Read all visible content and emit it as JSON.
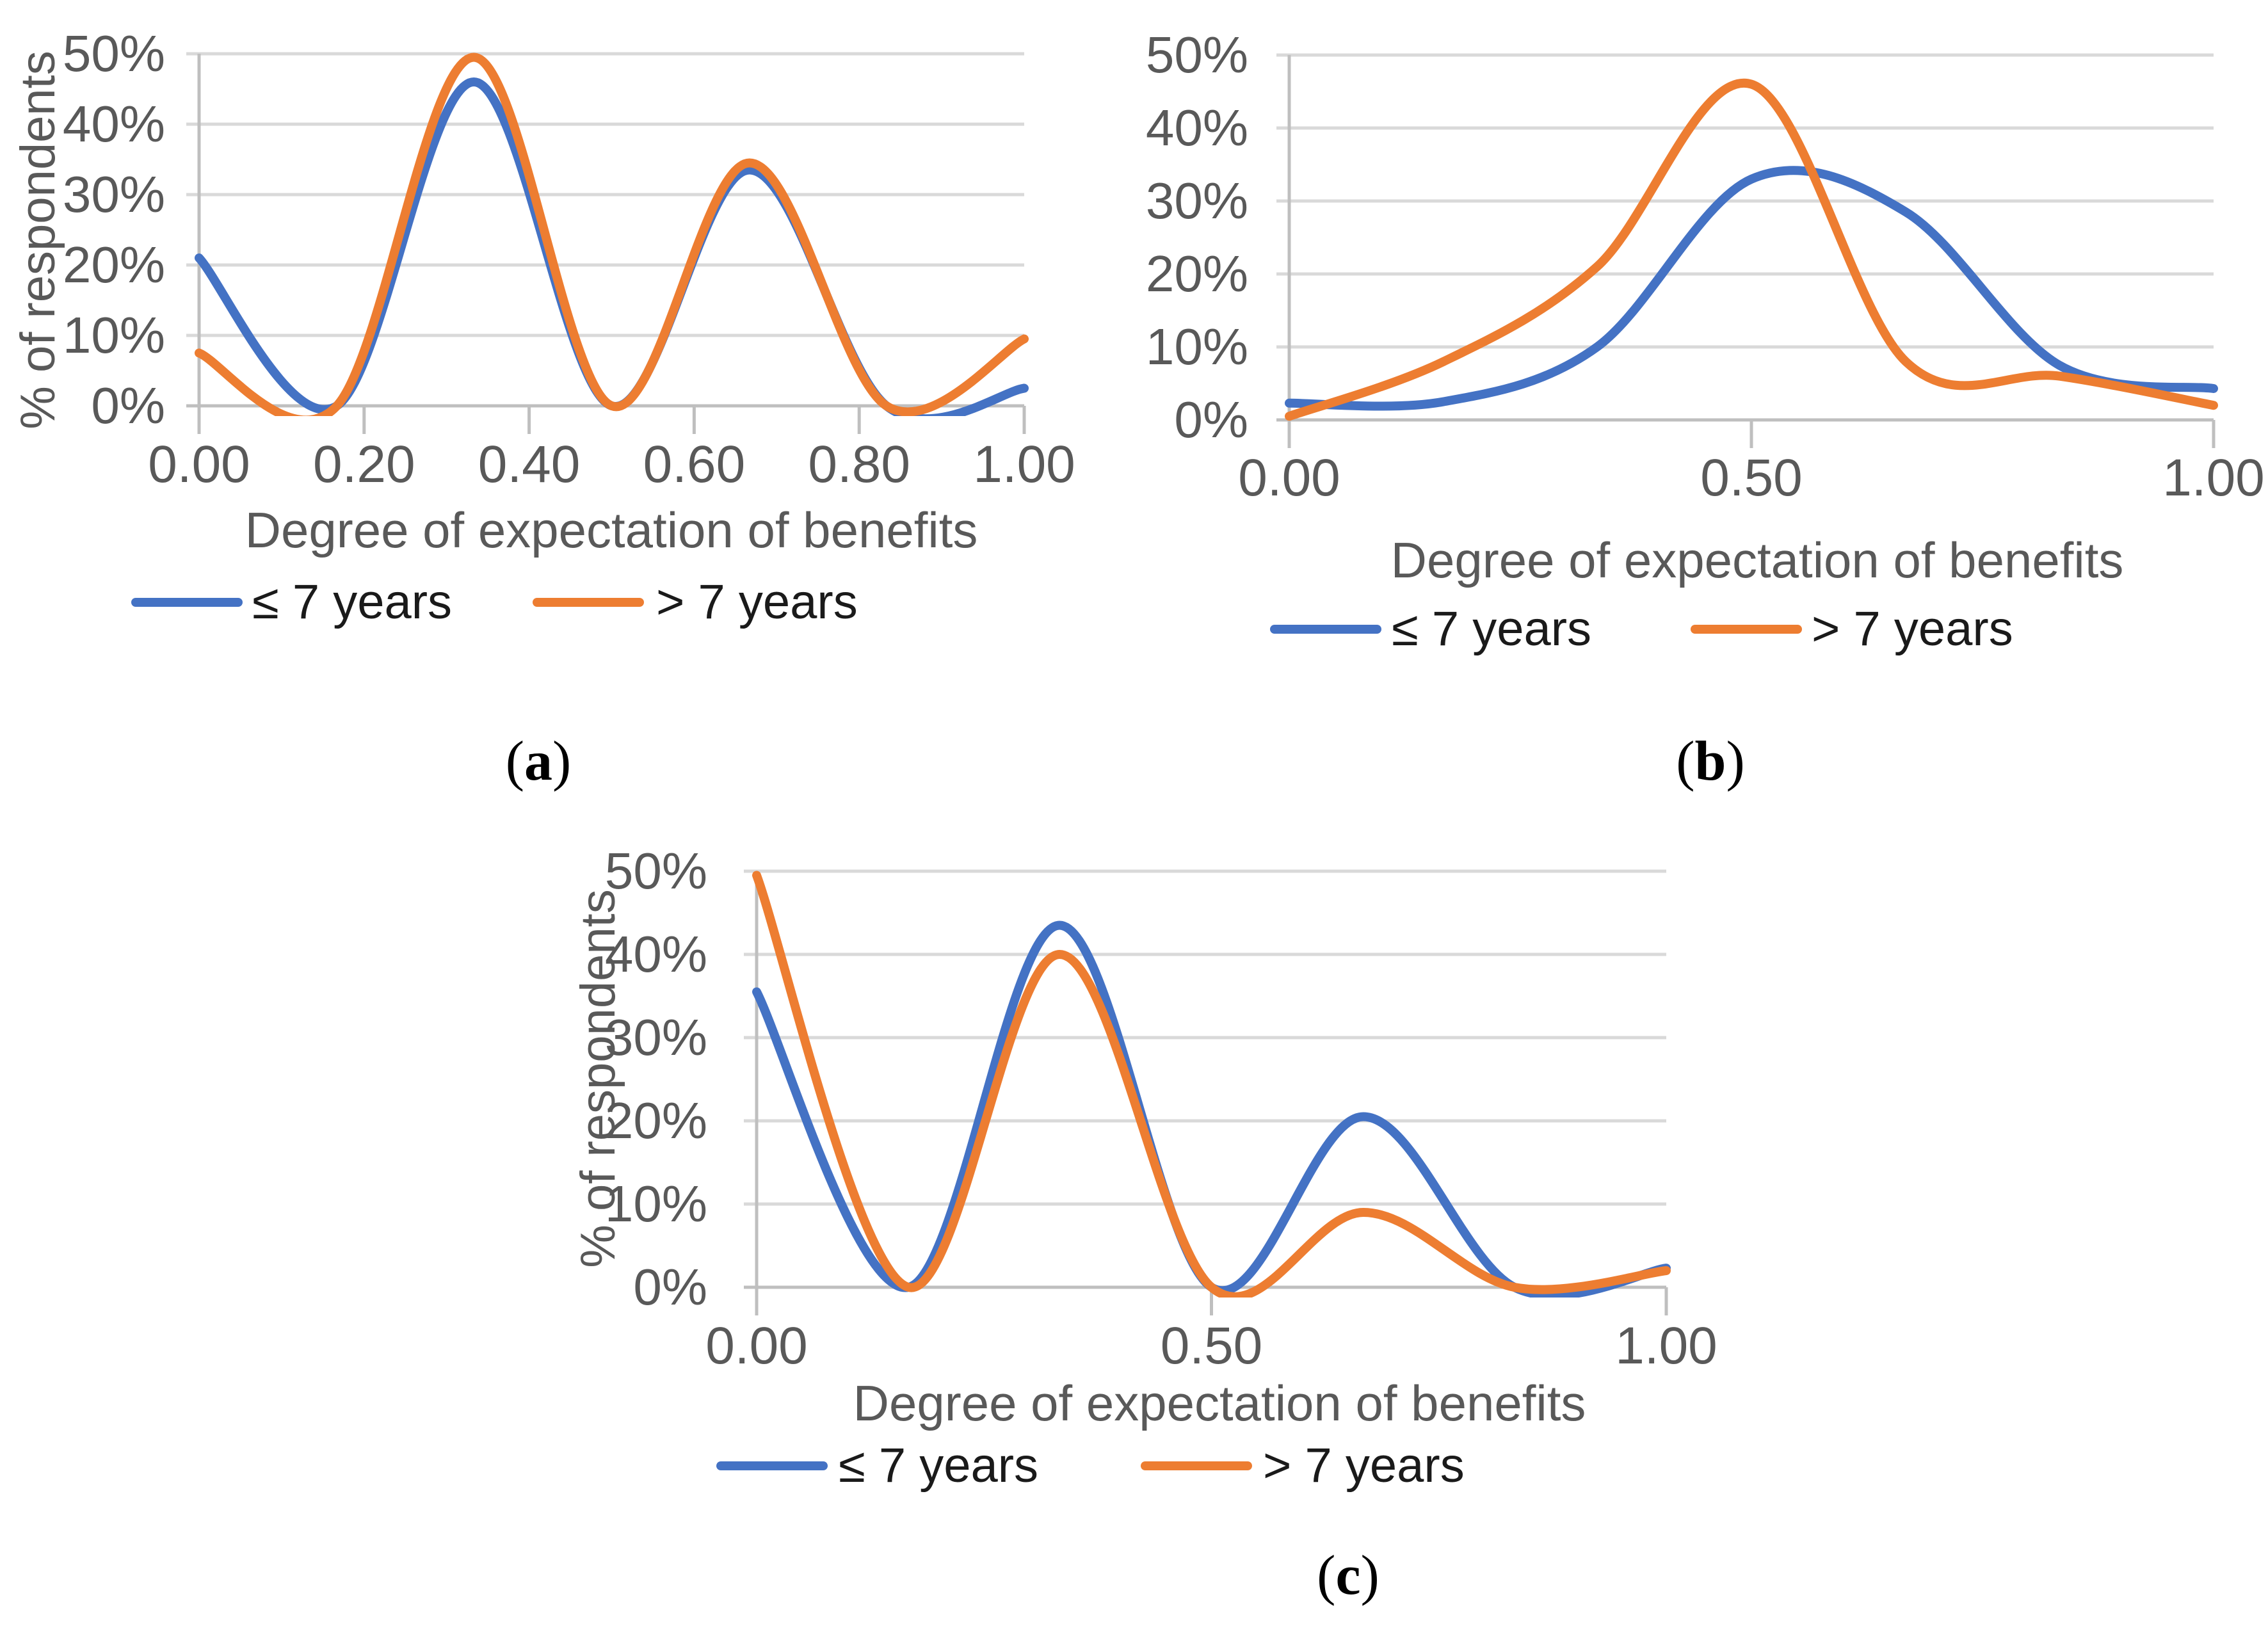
{
  "style": {
    "series_blue": "#4472C4",
    "series_orange": "#ED7D31",
    "gridline_color": "#D9D9D9",
    "axis_line_color": "#BFBFBF",
    "axis_text_color": "#595959",
    "legend_text_color": "#1A1A1A",
    "background": "#FFFFFF"
  },
  "chart_data": [
    {
      "id": "a",
      "type": "line",
      "smooth": true,
      "title": "",
      "xlabel": "Degree of expectation of benefits",
      "ylabel": "% of respondents",
      "xlim": [
        0,
        1
      ],
      "ylim": [
        0,
        50
      ],
      "grid": true,
      "legend_position": "bottom",
      "caption_open": "(",
      "caption_letter": "a",
      "caption_close": ")",
      "x_ticks": [
        0,
        0.2,
        0.4,
        0.6,
        0.8,
        1
      ],
      "x_tick_labels": [
        "0.00",
        "0.20",
        "0.40",
        "0.60",
        "0.80",
        "1.00"
      ],
      "y_tick_labels": [
        "0%",
        "10%",
        "20%",
        "30%",
        "40%",
        "50%"
      ],
      "x": [
        0,
        0.167,
        0.333,
        0.5,
        0.667,
        0.833,
        1
      ],
      "series": [
        {
          "name": "≤ 7 years",
          "color": "#4472C4",
          "values": [
            21,
            0,
            46,
            0,
            33.5,
            0,
            2.5
          ]
        },
        {
          "name": "> 7 years",
          "color": "#ED7D31",
          "values": [
            7.5,
            0,
            49.5,
            0,
            34.5,
            0,
            9.5
          ]
        }
      ]
    },
    {
      "id": "b",
      "type": "line",
      "smooth": true,
      "title": "",
      "xlabel": "Degree of expectation of benefits",
      "ylabel": "",
      "xlim": [
        0,
        1
      ],
      "ylim": [
        0,
        50
      ],
      "grid": true,
      "legend_position": "bottom",
      "caption_open": "(",
      "caption_letter": "b",
      "caption_close": ")",
      "x_ticks": [
        0,
        0.5,
        1
      ],
      "x_tick_labels": [
        "0.00",
        "0.50",
        "1.00"
      ],
      "y_tick_labels": [
        "0%",
        "10%",
        "20%",
        "30%",
        "40%",
        "50%"
      ],
      "x": [
        0,
        0.167,
        0.333,
        0.5,
        0.667,
        0.833,
        1
      ],
      "series": [
        {
          "name": "≤ 7 years",
          "color": "#4472C4",
          "values": [
            2.3,
            2.5,
            10,
            33,
            28.5,
            7.5,
            4.3
          ]
        },
        {
          "name": "> 7 years",
          "color": "#ED7D31",
          "values": [
            0.5,
            8,
            21,
            46,
            8,
            6,
            2
          ]
        }
      ]
    },
    {
      "id": "c",
      "type": "line",
      "smooth": true,
      "title": "",
      "xlabel": "Degree of expectation of benefits",
      "ylabel": "% of respondents",
      "xlim": [
        0,
        1
      ],
      "ylim": [
        0,
        50
      ],
      "grid": true,
      "legend_position": "bottom",
      "caption_open": "(",
      "caption_letter": "c",
      "caption_close": ")",
      "x_ticks": [
        0,
        0.5,
        1
      ],
      "x_tick_labels": [
        "0.00",
        "0.50",
        "1.00"
      ],
      "y_tick_labels": [
        "0%",
        "10%",
        "20%",
        "30%",
        "40%",
        "50%"
      ],
      "x": [
        0,
        0.167,
        0.333,
        0.5,
        0.667,
        0.833,
        1
      ],
      "series": [
        {
          "name": "≤ 7 years",
          "color": "#4472C4",
          "values": [
            35.5,
            0,
            43.5,
            0,
            20.5,
            0,
            2.3
          ]
        },
        {
          "name": "> 7 years",
          "color": "#ED7D31",
          "values": [
            49.5,
            0,
            40,
            0,
            9,
            0,
            2
          ]
        }
      ]
    }
  ]
}
